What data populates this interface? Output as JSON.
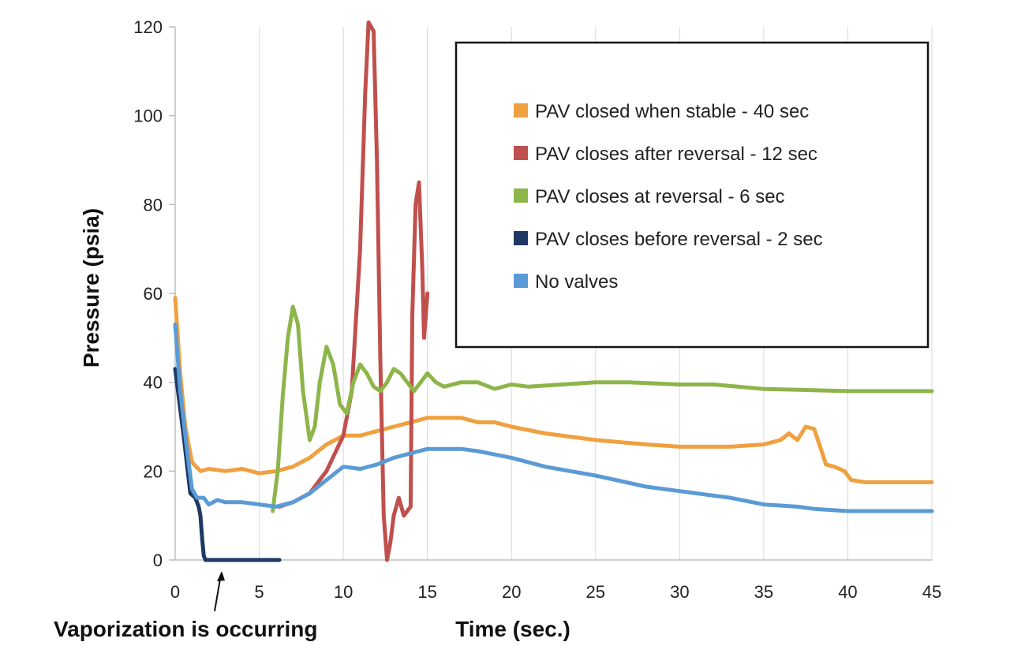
{
  "chart_data": {
    "type": "line",
    "title": "",
    "xlabel": "Time (sec.)",
    "ylabel": "Pressure (psia)",
    "xlim": [
      0,
      45
    ],
    "ylim": [
      0,
      120
    ],
    "xticks": [
      0,
      5,
      10,
      15,
      20,
      25,
      30,
      35,
      40,
      45
    ],
    "yticks": [
      0,
      20,
      40,
      60,
      80,
      100,
      120
    ],
    "grid": "vertical",
    "legend_position": "top-right",
    "annotation": {
      "text": "Vaporization is occurring",
      "x": 2.6
    },
    "series": [
      {
        "name": "PAV closed when stable - 40 sec",
        "color": "#F0A040",
        "points": [
          [
            0,
            59
          ],
          [
            0.3,
            42
          ],
          [
            0.6,
            30
          ],
          [
            1,
            22
          ],
          [
            1.5,
            20
          ],
          [
            2,
            20.5
          ],
          [
            3,
            20
          ],
          [
            4,
            20.5
          ],
          [
            5,
            19.5
          ],
          [
            6,
            20
          ],
          [
            7,
            21
          ],
          [
            8,
            23
          ],
          [
            9,
            26
          ],
          [
            10,
            28
          ],
          [
            11,
            28
          ],
          [
            12,
            29
          ],
          [
            13,
            30
          ],
          [
            14,
            31
          ],
          [
            15,
            32
          ],
          [
            16,
            32
          ],
          [
            17,
            32
          ],
          [
            18,
            31
          ],
          [
            19,
            31
          ],
          [
            20,
            30
          ],
          [
            22,
            28.5
          ],
          [
            25,
            27
          ],
          [
            28,
            26
          ],
          [
            30,
            25.5
          ],
          [
            33,
            25.5
          ],
          [
            35,
            26
          ],
          [
            35.5,
            26.5
          ],
          [
            36,
            27
          ],
          [
            36.5,
            28.5
          ],
          [
            37,
            27
          ],
          [
            37.5,
            30
          ],
          [
            38,
            29.5
          ],
          [
            38.4,
            25
          ],
          [
            38.7,
            21.5
          ],
          [
            39.2,
            21
          ],
          [
            39.8,
            20
          ],
          [
            40.2,
            18
          ],
          [
            41,
            17.5
          ],
          [
            45,
            17.5
          ]
        ]
      },
      {
        "name": "PAV closes after reversal - 12 sec",
        "color": "#C0504D",
        "points": [
          [
            6.2,
            12
          ],
          [
            7,
            13
          ],
          [
            8,
            15
          ],
          [
            9,
            20
          ],
          [
            10,
            28
          ],
          [
            10.5,
            38
          ],
          [
            11,
            70
          ],
          [
            11.3,
            105
          ],
          [
            11.5,
            121
          ],
          [
            11.8,
            119
          ],
          [
            12,
            90
          ],
          [
            12.2,
            45
          ],
          [
            12.4,
            10
          ],
          [
            12.6,
            0
          ],
          [
            12.8,
            4
          ],
          [
            13,
            10
          ],
          [
            13.3,
            14
          ],
          [
            13.6,
            10
          ],
          [
            14,
            12
          ],
          [
            14.1,
            55
          ],
          [
            14.3,
            80
          ],
          [
            14.5,
            85
          ],
          [
            14.7,
            65
          ],
          [
            14.8,
            50
          ],
          [
            15,
            60
          ]
        ]
      },
      {
        "name": "PAV  closes at reversal - 6 sec",
        "color": "#8DB54A",
        "points": [
          [
            5.8,
            11
          ],
          [
            6.1,
            20
          ],
          [
            6.4,
            37
          ],
          [
            6.7,
            50
          ],
          [
            7,
            57
          ],
          [
            7.3,
            53
          ],
          [
            7.6,
            38
          ],
          [
            8,
            27
          ],
          [
            8.3,
            30
          ],
          [
            8.6,
            40
          ],
          [
            9,
            48
          ],
          [
            9.4,
            44
          ],
          [
            9.8,
            35
          ],
          [
            10.2,
            33
          ],
          [
            10.6,
            40
          ],
          [
            11,
            44
          ],
          [
            11.4,
            42
          ],
          [
            11.8,
            39
          ],
          [
            12.2,
            38
          ],
          [
            12.6,
            40
          ],
          [
            13,
            43
          ],
          [
            13.4,
            42
          ],
          [
            13.8,
            40
          ],
          [
            14.2,
            38
          ],
          [
            14.6,
            40
          ],
          [
            15,
            42
          ],
          [
            15.5,
            40
          ],
          [
            16,
            39
          ],
          [
            17,
            40
          ],
          [
            18,
            40
          ],
          [
            19,
            38.5
          ],
          [
            20,
            39.5
          ],
          [
            21,
            39
          ],
          [
            23,
            39.5
          ],
          [
            25,
            40
          ],
          [
            27,
            40
          ],
          [
            30,
            39.5
          ],
          [
            32,
            39.5
          ],
          [
            35,
            38.5
          ],
          [
            40,
            38
          ],
          [
            45,
            38
          ]
        ]
      },
      {
        "name": "PAV  closes before reversal - 2 sec",
        "color": "#1F3864",
        "points": [
          [
            0,
            43
          ],
          [
            0.5,
            28
          ],
          [
            0.9,
            15
          ],
          [
            1.2,
            14
          ],
          [
            1.4,
            12
          ],
          [
            1.5,
            10
          ],
          [
            1.6,
            5
          ],
          [
            1.7,
            1
          ],
          [
            1.8,
            0
          ],
          [
            3,
            0
          ],
          [
            4,
            0
          ],
          [
            5,
            0
          ],
          [
            6.2,
            0
          ]
        ]
      },
      {
        "name": "No valves",
        "color": "#5B9BD5",
        "points": [
          [
            0,
            53
          ],
          [
            0.3,
            38
          ],
          [
            0.7,
            25
          ],
          [
            1,
            16
          ],
          [
            1.3,
            14
          ],
          [
            1.7,
            14
          ],
          [
            2,
            12.5
          ],
          [
            2.5,
            13.5
          ],
          [
            3,
            13
          ],
          [
            4,
            13
          ],
          [
            5,
            12.5
          ],
          [
            6,
            12
          ],
          [
            7,
            13
          ],
          [
            8,
            15
          ],
          [
            9,
            18
          ],
          [
            10,
            21
          ],
          [
            11,
            20.5
          ],
          [
            12,
            21.5
          ],
          [
            13,
            23
          ],
          [
            14,
            24
          ],
          [
            15,
            25
          ],
          [
            16,
            25
          ],
          [
            17,
            25
          ],
          [
            18,
            24.5
          ],
          [
            20,
            23
          ],
          [
            22,
            21
          ],
          [
            25,
            19
          ],
          [
            28,
            16.5
          ],
          [
            30,
            15.5
          ],
          [
            33,
            14
          ],
          [
            35,
            12.5
          ],
          [
            37,
            12
          ],
          [
            38,
            11.5
          ],
          [
            40,
            11
          ],
          [
            45,
            11
          ]
        ]
      }
    ]
  }
}
